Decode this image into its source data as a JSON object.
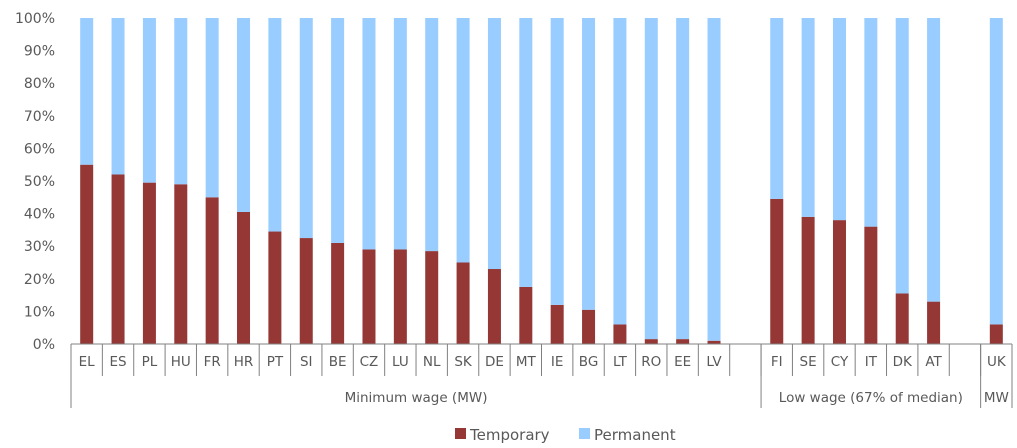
{
  "chart_data": {
    "type": "bar",
    "stacked": true,
    "title": "",
    "xlabel": "",
    "ylabel": "",
    "ylim": [
      0,
      100
    ],
    "y_ticks": [
      "0%",
      "10%",
      "20%",
      "30%",
      "40%",
      "50%",
      "60%",
      "70%",
      "80%",
      "90%",
      "100%"
    ],
    "grid": false,
    "legend_position": "bottom",
    "colors": {
      "Temporary": "#953735",
      "Permanent": "#99CCFF"
    },
    "categories": [
      "EL",
      "ES",
      "PL",
      "HU",
      "FR",
      "HR",
      "PT",
      "SI",
      "BE",
      "CZ",
      "LU",
      "NL",
      "SK",
      "DE",
      "MT",
      "IE",
      "BG",
      "LT",
      "RO",
      "EE",
      "LV",
      "",
      "FI",
      "SE",
      "CY",
      "IT",
      "DK",
      "AT",
      "",
      "UK"
    ],
    "groups": [
      {
        "label": "Minimum wage (MW)",
        "categories": [
          "EL",
          "ES",
          "PL",
          "HU",
          "FR",
          "HR",
          "PT",
          "SI",
          "BE",
          "CZ",
          "LU",
          "NL",
          "SK",
          "DE",
          "MT",
          "IE",
          "BG",
          "LT",
          "RO",
          "EE",
          "LV",
          ""
        ]
      },
      {
        "label": "Low wage (67% of median)",
        "categories": [
          "FI",
          "SE",
          "CY",
          "IT",
          "DK",
          "AT",
          ""
        ]
      },
      {
        "label": "MW",
        "categories": [
          "UK"
        ]
      }
    ],
    "series": [
      {
        "name": "Temporary",
        "values": [
          55,
          52,
          49.5,
          49,
          45,
          40.5,
          34.5,
          32.5,
          31,
          29,
          29,
          28.5,
          25,
          23,
          17.5,
          12,
          10.5,
          6,
          1.5,
          1.5,
          1,
          null,
          44.5,
          39,
          38,
          36,
          15.5,
          13,
          null,
          6
        ]
      },
      {
        "name": "Permanent",
        "values": [
          45,
          48,
          50.5,
          51,
          55,
          59.5,
          65.5,
          67.5,
          69,
          71,
          71,
          71.5,
          75,
          77,
          82.5,
          88,
          89.5,
          94,
          98.5,
          98.5,
          99,
          null,
          55.5,
          61,
          62,
          64,
          84.5,
          87,
          null,
          94
        ]
      }
    ]
  }
}
